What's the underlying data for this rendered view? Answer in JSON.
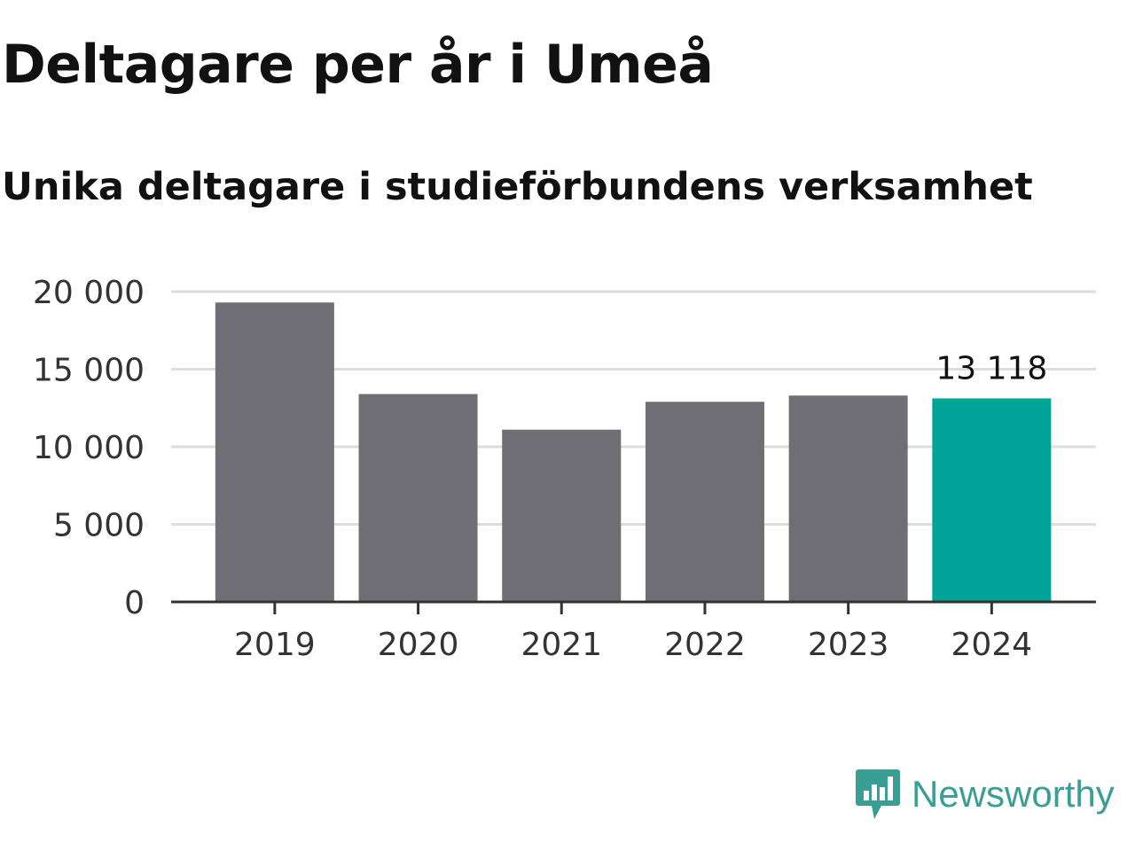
{
  "colors": {
    "bar": "#6f6e74",
    "highlight": "#00a398",
    "grid": "#dddddd",
    "axis": "#333333",
    "brand": "#3a9e95"
  },
  "brand": {
    "name": "Newsworthy",
    "icon": "bar-chart-speech-bubble-icon"
  },
  "chart_data": {
    "type": "bar",
    "title": "Deltagare per år i Umeå",
    "subtitle": "Unika deltagare i studieförbundens verksamhet",
    "categories": [
      "2019",
      "2020",
      "2021",
      "2022",
      "2023",
      "2024"
    ],
    "values": [
      19300,
      13400,
      11100,
      12900,
      13300,
      13118
    ],
    "highlight_index": 5,
    "data_labels": [
      {
        "index": 5,
        "text": "13 118"
      }
    ],
    "yticks": [
      0,
      5000,
      10000,
      15000,
      20000
    ],
    "ytick_labels": [
      "0",
      "5 000",
      "10 000",
      "15 000",
      "20 000"
    ],
    "ylim": [
      0,
      20000
    ],
    "grid": true,
    "legend": "none"
  }
}
